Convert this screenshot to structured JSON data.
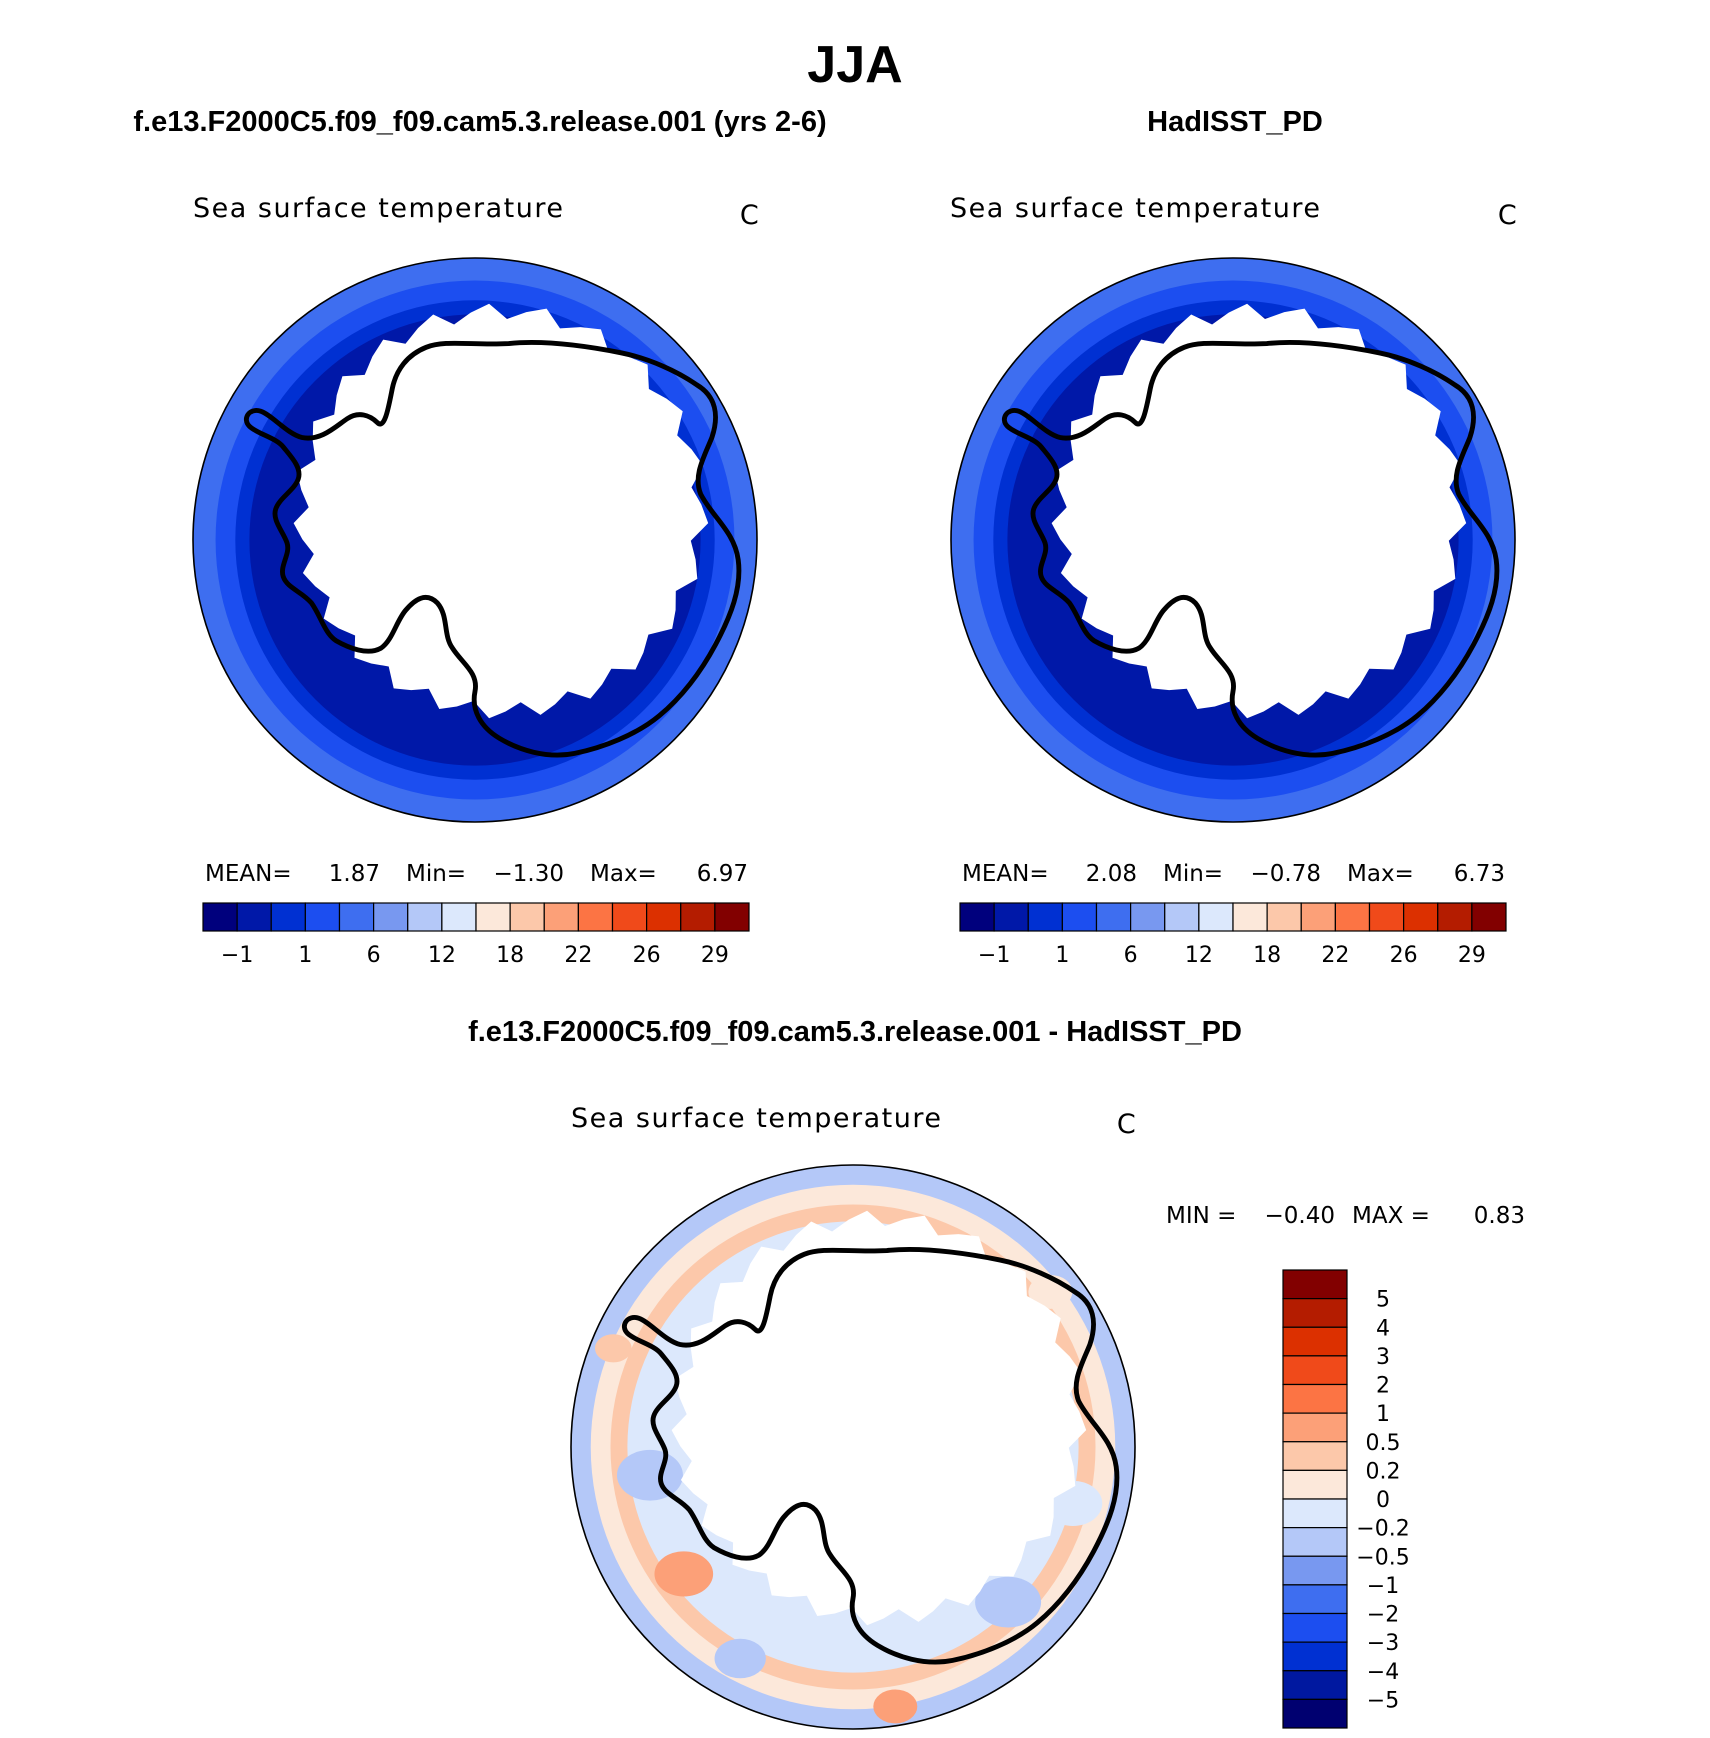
{
  "figure": {
    "title": "JJA",
    "diff_title": "f.e13.F2000C5.f09_f09.cam5.3.release.001 - HadISST_PD"
  },
  "colors": {
    "sst": [
      "#00007d",
      "#0018a8",
      "#0030d2",
      "#1c4ef0",
      "#3e6ef0",
      "#7898f0",
      "#b4c8f8",
      "#dce8fc",
      "#fce8da",
      "#fcc8aa",
      "#fca078",
      "#fc7444",
      "#f04a1a",
      "#dc3000",
      "#b41c00",
      "#820000"
    ],
    "diff": [
      "#000070",
      "#0018a0",
      "#0030d2",
      "#1c4ef0",
      "#3e6ef0",
      "#7898f0",
      "#b4c8f8",
      "#dce8fc",
      "#fce8da",
      "#fcc8aa",
      "#fca078",
      "#fc7444",
      "#f04a1a",
      "#dc3000",
      "#b41c00",
      "#820000"
    ],
    "ocean_sst": [
      "#0018a8",
      "#0030d2",
      "#1c4ef0",
      "#3e6ef0",
      "#6a90f0"
    ],
    "ocean_diff": [
      "#fce8da",
      "#fcc8aa",
      "#dce8fc",
      "#b4c8f8",
      "#fca078"
    ]
  },
  "chart_data": [
    {
      "type": "heatmap",
      "projection": "south-polar-stereographic",
      "case": "f.e13.F2000C5.f09_f09.cam5.3.release.001 (yrs 2-6)",
      "title": "Sea surface temperature",
      "units": "C",
      "stats": [
        {
          "label": "MEAN=",
          "value": "1.87"
        },
        {
          "label": "Min=",
          "value": "−1.30"
        },
        {
          "label": "Max=",
          "value": "6.97"
        }
      ],
      "colorbar": {
        "orientation": "horizontal",
        "levels": [
          -1,
          1,
          6,
          12,
          18,
          22,
          26,
          29
        ],
        "tick_labels": [
          "−1",
          "1",
          "6",
          "12",
          "18",
          "22",
          "26",
          "29"
        ]
      }
    },
    {
      "type": "heatmap",
      "projection": "south-polar-stereographic",
      "case": "HadISST_PD",
      "title": "Sea surface temperature",
      "units": "C",
      "stats": [
        {
          "label": "MEAN=",
          "value": "2.08"
        },
        {
          "label": "Min=",
          "value": "−0.78"
        },
        {
          "label": "Max=",
          "value": "6.73"
        }
      ],
      "colorbar": {
        "orientation": "horizontal",
        "levels": [
          -1,
          1,
          6,
          12,
          18,
          22,
          26,
          29
        ],
        "tick_labels": [
          "−1",
          "1",
          "6",
          "12",
          "18",
          "22",
          "26",
          "29"
        ]
      }
    },
    {
      "type": "heatmap",
      "projection": "south-polar-stereographic",
      "case": "f.e13.F2000C5.f09_f09.cam5.3.release.001 - HadISST_PD",
      "title": "Sea surface temperature",
      "units": "C",
      "stats": [
        {
          "label": "MIN =",
          "value": "−0.40"
        },
        {
          "label": "MAX =",
          "value": "0.83"
        }
      ],
      "colorbar": {
        "orientation": "vertical",
        "levels": [
          5,
          4,
          3,
          2,
          1,
          0.5,
          0.2,
          0,
          -0.2,
          -0.5,
          -1,
          -2,
          -3,
          -4,
          -5
        ],
        "tick_labels": [
          "5",
          "4",
          "3",
          "2",
          "1",
          "0.5",
          "0.2",
          "0",
          "−0.2",
          "−0.5",
          "−1",
          "−2",
          "−3",
          "−4",
          "−5"
        ]
      }
    }
  ]
}
